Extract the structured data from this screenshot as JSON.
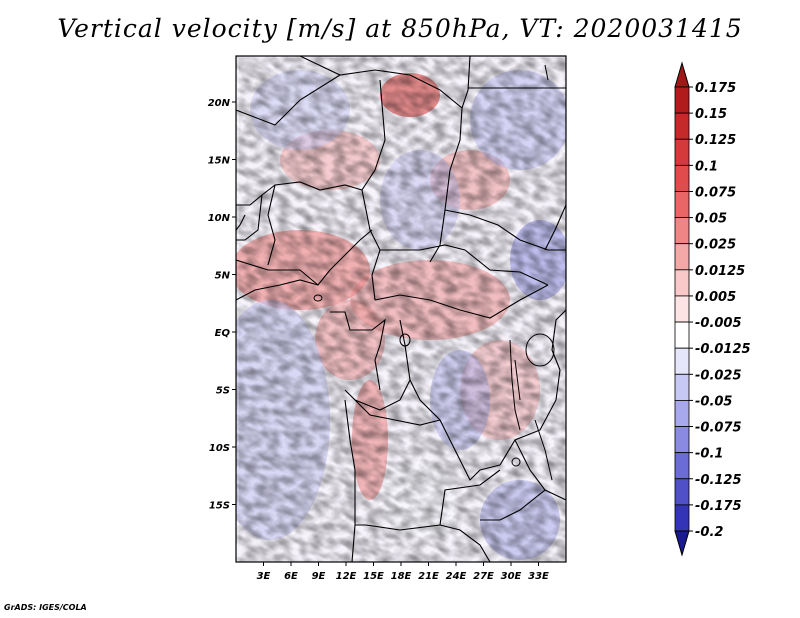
{
  "title": "Vertical velocity [m/s] at 850hPa, VT: 2020031415",
  "credit": "GrADS: IGES/COLA",
  "map": {
    "lon_range": [
      0,
      36
    ],
    "lat_range": [
      -20,
      24
    ],
    "lat_ticks": [
      {
        "value": 20,
        "label": "20N"
      },
      {
        "value": 15,
        "label": "15N"
      },
      {
        "value": 10,
        "label": "10N"
      },
      {
        "value": 5,
        "label": "5N"
      },
      {
        "value": 0,
        "label": "EQ"
      },
      {
        "value": -5,
        "label": "5S"
      },
      {
        "value": -10,
        "label": "10S"
      },
      {
        "value": -15,
        "label": "15S"
      }
    ],
    "lon_ticks": [
      {
        "value": 3,
        "label": "3E"
      },
      {
        "value": 6,
        "label": "6E"
      },
      {
        "value": 9,
        "label": "9E"
      },
      {
        "value": 12,
        "label": "12E"
      },
      {
        "value": 15,
        "label": "15E"
      },
      {
        "value": 18,
        "label": "18E"
      },
      {
        "value": 21,
        "label": "21E"
      },
      {
        "value": 24,
        "label": "24E"
      },
      {
        "value": 27,
        "label": "27E"
      },
      {
        "value": 30,
        "label": "30E"
      },
      {
        "value": 33,
        "label": "33E"
      }
    ]
  },
  "colorbar": {
    "levels": [
      {
        "label": "0.175",
        "color": "#b01c1c"
      },
      {
        "label": "0.15",
        "color": "#c42a2a"
      },
      {
        "label": "0.125",
        "color": "#d53a3a"
      },
      {
        "label": "0.1",
        "color": "#e04c4c"
      },
      {
        "label": "0.075",
        "color": "#e86666"
      },
      {
        "label": "0.05",
        "color": "#ef8585"
      },
      {
        "label": "0.025",
        "color": "#f5a8a8"
      },
      {
        "label": "0.0125",
        "color": "#f9c8c8"
      },
      {
        "label": "0.005",
        "color": "#fde4e4"
      },
      {
        "label": "-0.005",
        "color": "#ffffff"
      },
      {
        "label": "-0.0125",
        "color": "#e6e6fb"
      },
      {
        "label": "-0.025",
        "color": "#c8c8f4"
      },
      {
        "label": "-0.05",
        "color": "#a8a8ec"
      },
      {
        "label": "-0.075",
        "color": "#8a8ae2"
      },
      {
        "label": "-0.1",
        "color": "#6c6cd6"
      },
      {
        "label": "-0.125",
        "color": "#5050c8"
      },
      {
        "label": "-0.175",
        "color": "#3434b6"
      },
      {
        "label": "-0.2",
        "color": "#1e1ea0"
      }
    ],
    "end_colors": {
      "top": "#a01818",
      "bottom": "#1a1a90"
    }
  }
}
